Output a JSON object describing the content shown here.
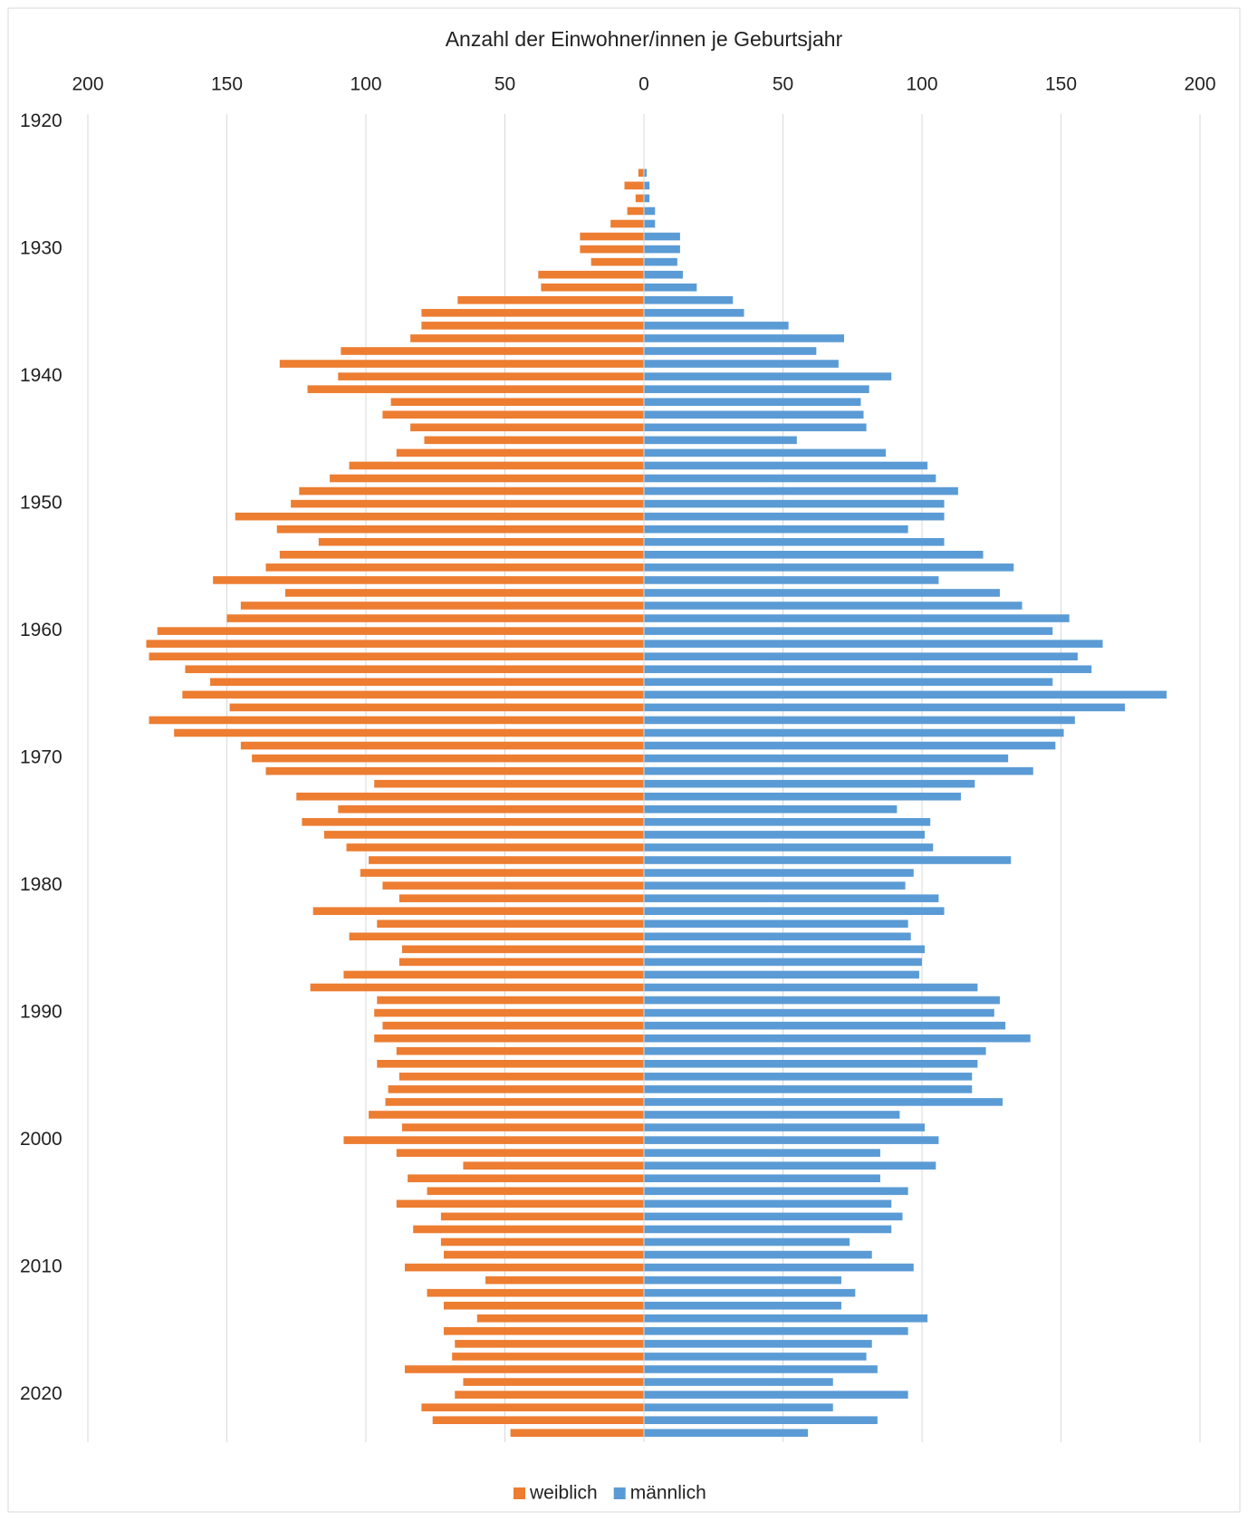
{
  "chart_data": {
    "type": "bar",
    "orientation": "horizontal",
    "title": "Anzahl der Einwohner/innen je Geburtsjahr",
    "y": [
      1924,
      1925,
      1926,
      1927,
      1928,
      1929,
      1930,
      1931,
      1932,
      1933,
      1934,
      1935,
      1936,
      1937,
      1938,
      1939,
      1940,
      1941,
      1942,
      1943,
      1944,
      1945,
      1946,
      1947,
      1948,
      1949,
      1950,
      1951,
      1952,
      1953,
      1954,
      1955,
      1956,
      1957,
      1958,
      1959,
      1960,
      1961,
      1962,
      1963,
      1964,
      1965,
      1966,
      1967,
      1968,
      1969,
      1970,
      1971,
      1972,
      1973,
      1974,
      1975,
      1976,
      1977,
      1978,
      1979,
      1980,
      1981,
      1982,
      1983,
      1984,
      1985,
      1986,
      1987,
      1988,
      1989,
      1990,
      1991,
      1992,
      1993,
      1994,
      1995,
      1996,
      1997,
      1998,
      1999,
      2000,
      2001,
      2002,
      2003,
      2004,
      2005,
      2006,
      2007,
      2008,
      2009,
      2010,
      2011,
      2012,
      2013,
      2014,
      2015,
      2016,
      2017,
      2018,
      2019,
      2020,
      2021,
      2022,
      2023
    ],
    "series": [
      {
        "name": "weiblich",
        "color": "#ed7d31",
        "values": [
          -2,
          -7,
          -3,
          -6,
          -12,
          -23,
          -23,
          -19,
          -38,
          -37,
          -67,
          -80,
          -80,
          -84,
          -109,
          -131,
          -110,
          -121,
          -91,
          -94,
          -84,
          -79,
          -89,
          -106,
          -113,
          -124,
          -127,
          -147,
          -132,
          -117,
          -131,
          -136,
          -155,
          -129,
          -145,
          -150,
          -175,
          -179,
          -178,
          -165,
          -156,
          -166,
          -149,
          -178,
          -169,
          -145,
          -141,
          -136,
          -97,
          -125,
          -110,
          -123,
          -115,
          -107,
          -99,
          -102,
          -94,
          -88,
          -119,
          -96,
          -106,
          -87,
          -88,
          -108,
          -120,
          -96,
          -97,
          -94,
          -97,
          -89,
          -96,
          -88,
          -92,
          -93,
          -99,
          -87,
          -108,
          -89,
          -65,
          -85,
          -78,
          -89,
          -73,
          -83,
          -73,
          -72,
          -86,
          -57,
          -78,
          -72,
          -60,
          -72,
          -68,
          -69,
          -86,
          -65,
          -68,
          -80,
          -76,
          -48
        ]
      },
      {
        "name": "männlich",
        "color": "#5b9bd5",
        "values": [
          1,
          2,
          2,
          4,
          4,
          13,
          13,
          12,
          14,
          19,
          32,
          36,
          52,
          72,
          62,
          70,
          89,
          81,
          78,
          79,
          80,
          55,
          87,
          102,
          105,
          113,
          108,
          108,
          95,
          108,
          122,
          133,
          106,
          128,
          136,
          153,
          147,
          165,
          156,
          161,
          147,
          188,
          173,
          155,
          151,
          148,
          131,
          140,
          119,
          114,
          91,
          103,
          101,
          104,
          132,
          97,
          94,
          106,
          108,
          95,
          96,
          101,
          100,
          99,
          120,
          128,
          126,
          130,
          139,
          123,
          120,
          118,
          118,
          129,
          92,
          101,
          106,
          85,
          105,
          85,
          95,
          89,
          93,
          89,
          74,
          82,
          97,
          71,
          76,
          71,
          102,
          95,
          82,
          80,
          84,
          68,
          95,
          68,
          84,
          59
        ]
      }
    ],
    "xlim": [
      -200,
      200
    ],
    "xticks": [
      {
        "value": -200,
        "label": "200"
      },
      {
        "value": -150,
        "label": "150"
      },
      {
        "value": -100,
        "label": "100"
      },
      {
        "value": -50,
        "label": "50"
      },
      0,
      50,
      100,
      150,
      200
    ],
    "ylim": [
      1920,
      2024
    ],
    "yticks": [
      1920,
      1930,
      1940,
      1950,
      1960,
      1970,
      1980,
      1990,
      2000,
      2010,
      2020
    ],
    "grid": true,
    "legend": "bottom"
  }
}
